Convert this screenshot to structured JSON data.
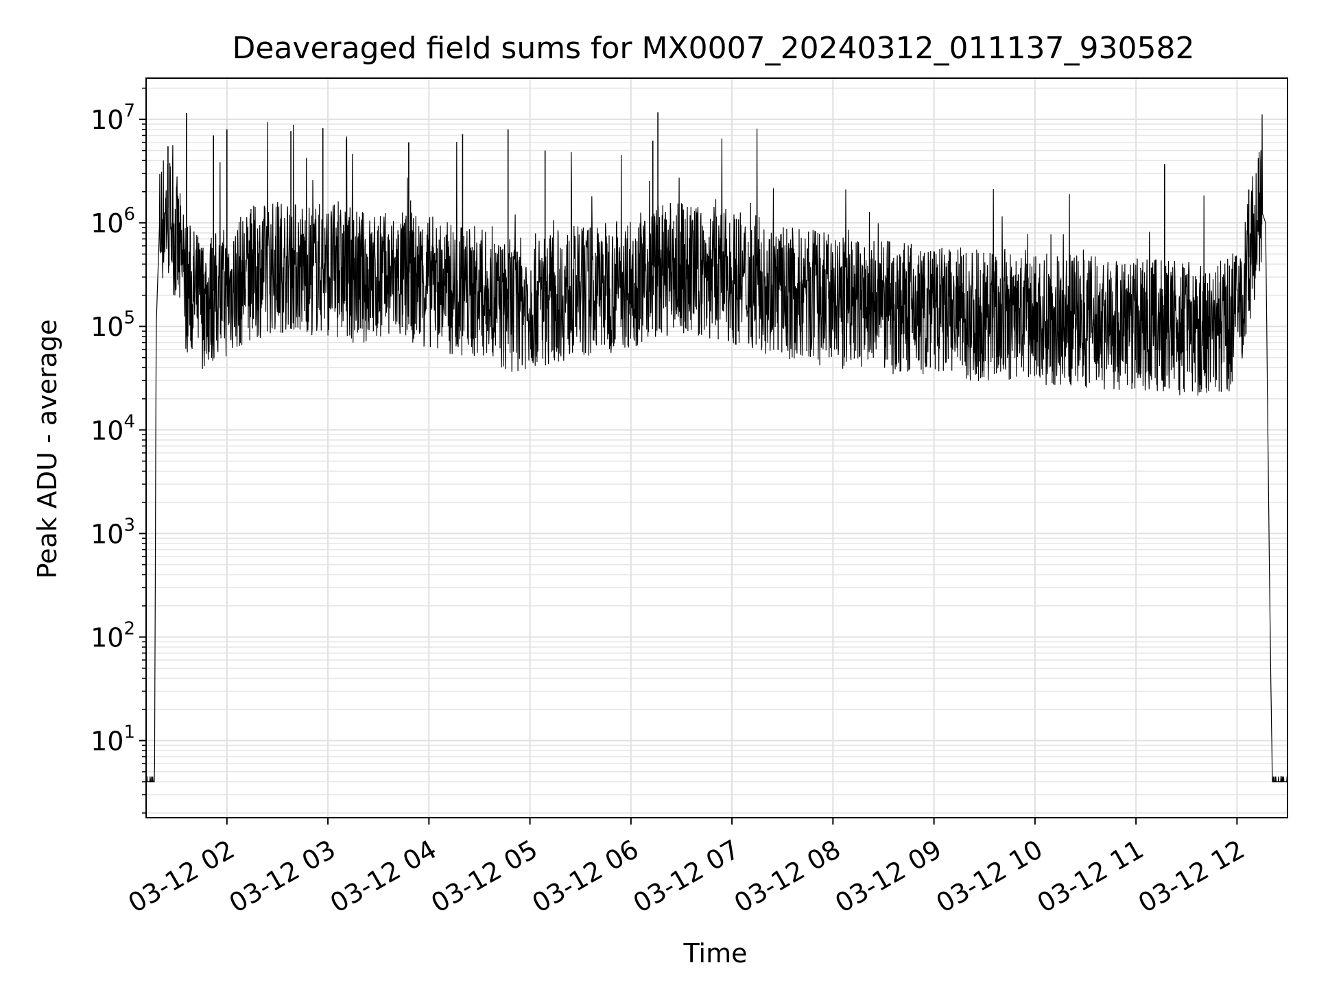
{
  "chart_data": {
    "type": "line",
    "title": "Deaveraged field sums for MX0007_20240312_011137_930582",
    "xlabel": "Time",
    "ylabel": "Peak ADU - average",
    "yscale": "log",
    "ylim": [
      1.8,
      25000000
    ],
    "xlim": [
      "2024-03-12 01:12",
      "2024-03-12 12:30"
    ],
    "grid": "major and minor",
    "x_tick_labels": [
      "03-12 02",
      "03-12 03",
      "03-12 04",
      "03-12 05",
      "03-12 06",
      "03-12 07",
      "03-12 08",
      "03-12 09",
      "03-12 10",
      "03-12 11",
      "03-12 12"
    ],
    "y_tick_labels": [
      {
        "base": "10",
        "exp": "1"
      },
      {
        "base": "10",
        "exp": "2"
      },
      {
        "base": "10",
        "exp": "3"
      },
      {
        "base": "10",
        "exp": "4"
      },
      {
        "base": "10",
        "exp": "5"
      },
      {
        "base": "10",
        "exp": "6"
      },
      {
        "base": "10",
        "exp": "7"
      }
    ],
    "series": [
      {
        "color": "#000000",
        "x": [
          "01:12",
          "01:13",
          "01:14",
          "01:15",
          "01:16",
          "01:17",
          "01:18",
          "01:20",
          "01:22",
          "01:25",
          "01:30",
          "01:35",
          "01:45",
          "02:00",
          "02:15",
          "02:30",
          "02:45",
          "03:00",
          "03:15",
          "03:30",
          "03:45",
          "04:00",
          "04:15",
          "04:30",
          "04:45",
          "05:00",
          "05:15",
          "05:30",
          "05:45",
          "06:00",
          "06:15",
          "06:30",
          "06:45",
          "07:00",
          "07:15",
          "07:30",
          "07:45",
          "08:00",
          "08:15",
          "08:30",
          "08:45",
          "09:00",
          "09:15",
          "09:30",
          "09:45",
          "10:00",
          "10:15",
          "10:30",
          "10:45",
          "11:00",
          "11:15",
          "11:30",
          "11:45",
          "11:55",
          "12:00",
          "12:05",
          "12:10",
          "12:14",
          "12:17",
          "12:19",
          "12:20",
          "12:21",
          "12:22",
          "12:25",
          "12:30"
        ],
        "y": [
          4,
          4,
          4,
          4,
          4,
          4,
          100000,
          1000000,
          1300000,
          1400000,
          800000,
          300000,
          200000,
          250000,
          380000,
          450000,
          430000,
          420000,
          360000,
          330000,
          350000,
          320000,
          260000,
          250000,
          180000,
          200000,
          230000,
          250000,
          280000,
          320000,
          400000,
          420000,
          380000,
          350000,
          300000,
          250000,
          230000,
          200000,
          190000,
          180000,
          170000,
          160000,
          155000,
          150000,
          145000,
          140000,
          135000,
          130000,
          125000,
          120000,
          115000,
          110000,
          110000,
          120000,
          160000,
          300000,
          900000,
          1400000,
          1000000,
          1000,
          50,
          4,
          4,
          4,
          4
        ],
        "spikes": [
          {
            "x": "01:25",
            "y": 5500000
          },
          {
            "x": "01:36",
            "y": 11500000
          },
          {
            "x": "01:52",
            "y": 7000000
          },
          {
            "x": "02:00",
            "y": 8000000
          },
          {
            "x": "02:38",
            "y": 7700000
          },
          {
            "x": "02:57",
            "y": 8200000
          },
          {
            "x": "03:11",
            "y": 6500000
          },
          {
            "x": "03:48",
            "y": 6000000
          },
          {
            "x": "04:20",
            "y": 7200000
          },
          {
            "x": "04:47",
            "y": 8000000
          },
          {
            "x": "05:09",
            "y": 5000000
          },
          {
            "x": "06:13",
            "y": 6200000
          },
          {
            "x": "06:16",
            "y": 11700000
          },
          {
            "x": "11:17",
            "y": 3700000
          },
          {
            "x": "12:07",
            "y": 2100000
          }
        ]
      }
    ]
  }
}
